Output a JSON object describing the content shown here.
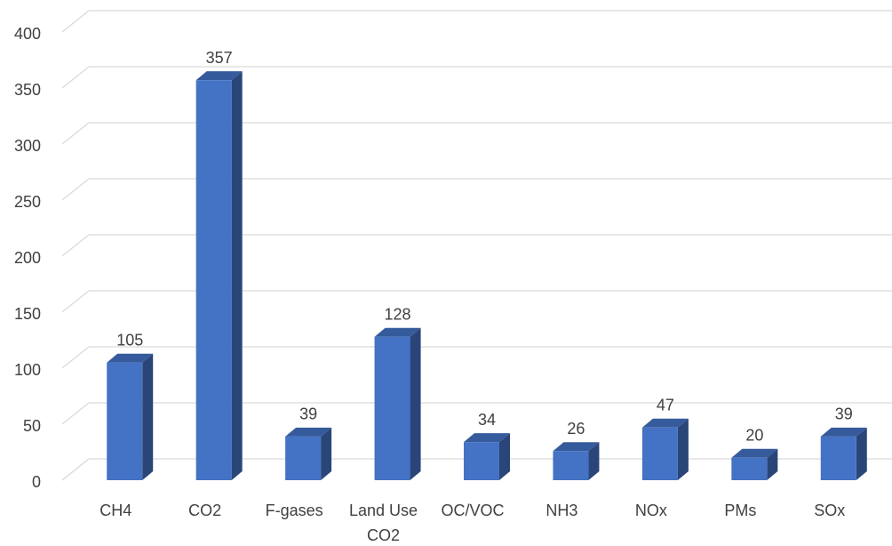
{
  "chart_data": {
    "type": "bar3d",
    "categories": [
      "CH4",
      "CO2",
      "F-gases",
      "Land Use CO2",
      "OC/VOC",
      "NH3",
      "NOx",
      "PMs",
      "SOx"
    ],
    "values": [
      105,
      357,
      39,
      128,
      34,
      26,
      47,
      20,
      39
    ],
    "color": "#4472c4",
    "ylim": [
      0,
      400
    ],
    "yticks": [
      0,
      50,
      100,
      150,
      200,
      250,
      300,
      350,
      400
    ],
    "grid": true
  }
}
